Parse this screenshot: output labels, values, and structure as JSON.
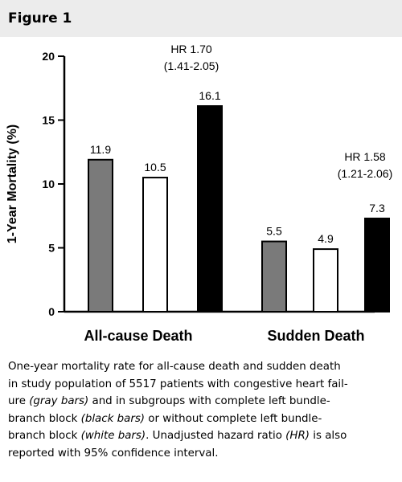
{
  "figure": {
    "label": "Figure 1"
  },
  "chart_data": {
    "type": "bar",
    "title": "",
    "xlabel": "",
    "ylabel": "1-Year Mortality (%)",
    "ylim": [
      0,
      20
    ],
    "yticks": [
      "0",
      "5",
      "10",
      "15",
      "20"
    ],
    "grid": false,
    "legend": "none",
    "categories": [
      "All-cause Death",
      "Sudden Death"
    ],
    "series": [
      {
        "color": "#7a7a7a",
        "values": [
          11.9,
          5.5
        ],
        "labels": [
          "11.9",
          "5.5"
        ]
      },
      {
        "color": "#ffffff",
        "values": [
          10.5,
          4.9
        ],
        "labels": [
          "10.5",
          "4.9"
        ]
      },
      {
        "color": "#000000",
        "values": [
          16.1,
          7.3
        ],
        "labels": [
          "16.1",
          "7.3"
        ]
      }
    ],
    "annotations": [
      {
        "line1": "HR 1.70",
        "line2": "(1.41-2.05)"
      },
      {
        "line1": "HR 1.58",
        "line2": "(1.21-2.06)"
      }
    ]
  },
  "caption": {
    "line1": "One-year mortality rate for all-cause death and sudden death",
    "line2": "in study population of 5517 patients with congestive heart fail-",
    "line3_a": "ure ",
    "line3_b": "(gray bars)",
    "line3_c": " and in subgroups with complete left bundle-",
    "line4_a": "branch block ",
    "line4_b": "(black bars)",
    "line4_c": " or without complete left bundle-",
    "line5_a": "branch block ",
    "line5_b": "(white bars)",
    "line5_c": ". Unadjusted hazard ratio ",
    "line5_d": "(HR)",
    "line5_e": " is also",
    "line6": "reported with 95% confidence interval."
  }
}
